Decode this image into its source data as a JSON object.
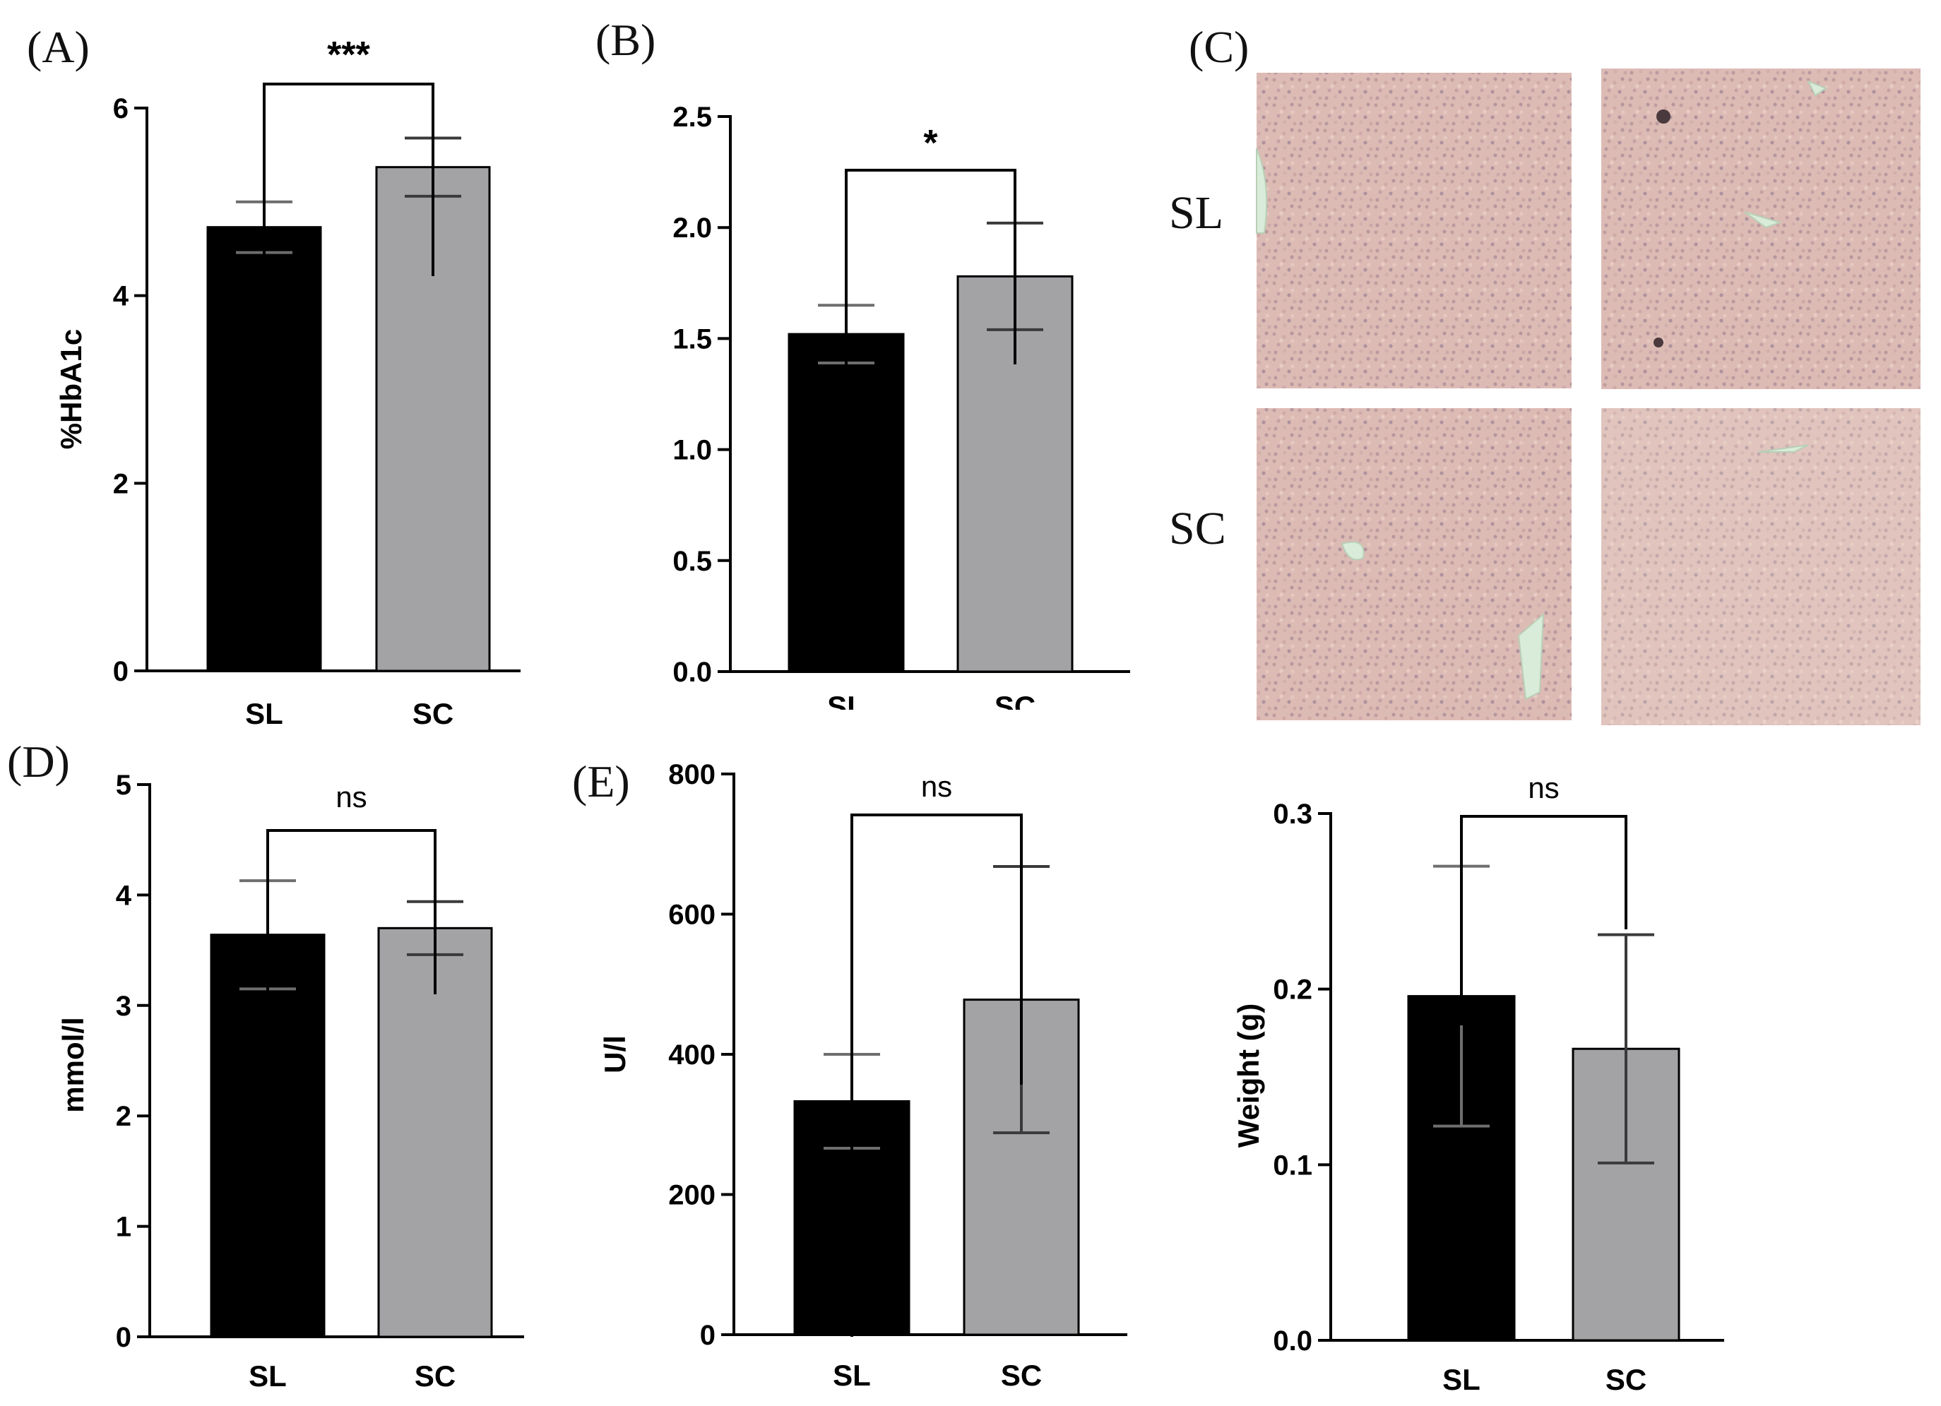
{
  "panel_labels": {
    "A": "(A)",
    "B": "(B)",
    "C": "(C)",
    "D": "(D)",
    "E": "(E)"
  },
  "histology": {
    "row_labels": [
      "SL",
      "SC"
    ],
    "images": [
      {
        "row": "SL",
        "description": "liver tissue H&E section, SL sample 1"
      },
      {
        "row": "SL",
        "description": "liver tissue H&E section, SL sample 2"
      },
      {
        "row": "SC",
        "description": "liver tissue H&E section, SC sample 1"
      },
      {
        "row": "SC",
        "description": "liver tissue H&E section, SC sample 2"
      }
    ]
  },
  "colors": {
    "SL": "#000000",
    "SC": "#a3a3a6",
    "SL_error": "#6e6e6e",
    "SC_error": "#3a3a3a"
  },
  "chart_data": [
    {
      "id": "A",
      "type": "bar",
      "categories": [
        "SL",
        "SC"
      ],
      "values": [
        4.73,
        5.37
      ],
      "errors": [
        0.27,
        0.31
      ],
      "ylabel": "%HbA1c",
      "ylim": [
        0,
        6
      ],
      "yticks": [
        0,
        2,
        4,
        6
      ],
      "significance": "***"
    },
    {
      "id": "B",
      "type": "bar",
      "categories": [
        "SL",
        "SC"
      ],
      "values": [
        1.52,
        1.78
      ],
      "errors": [
        0.13,
        0.24
      ],
      "ylabel": "",
      "ylim": [
        0,
        2.5
      ],
      "yticks": [
        0.0,
        0.5,
        1.0,
        1.5,
        2.0,
        2.5
      ],
      "significance": "*"
    },
    {
      "id": "D",
      "type": "bar",
      "categories": [
        "SL",
        "SC"
      ],
      "values": [
        3.64,
        3.7
      ],
      "errors": [
        0.49,
        0.24
      ],
      "ylabel": "mmol/l",
      "ylim": [
        0,
        5
      ],
      "yticks": [
        0,
        1,
        2,
        3,
        4,
        5
      ],
      "significance": "ns"
    },
    {
      "id": "E",
      "type": "bar",
      "categories": [
        "SL",
        "SC"
      ],
      "values": [
        333,
        478
      ],
      "errors": [
        67,
        190
      ],
      "ylabel": "U/l",
      "ylim": [
        0,
        800
      ],
      "yticks": [
        0,
        200,
        400,
        600,
        800
      ],
      "significance": "ns"
    },
    {
      "id": "F",
      "type": "bar",
      "categories": [
        "SL",
        "SC"
      ],
      "values": [
        0.196,
        0.166
      ],
      "errors": [
        0.074,
        0.065
      ],
      "ylabel": "Weight (g)",
      "ylim": [
        0,
        0.3
      ],
      "yticks": [
        0.0,
        0.1,
        0.2,
        0.3
      ],
      "significance": "ns"
    }
  ]
}
